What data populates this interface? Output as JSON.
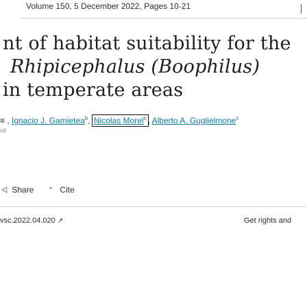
{
  "header": {
    "volume_line": "Volume 150, 5 December 2022, Pages 10-21"
  },
  "article": {
    "title_line1": "nt of habitat suitability for the",
    "title_line2": "Rhipicephalus (Boophilus)",
    "title_line3": "in temperate areas"
  },
  "authors": {
    "leading_fragment": "≡ ,",
    "items": [
      {
        "name": "Ignacio J. Gamietea",
        "sup": "b"
      },
      {
        "name": "Nicolas Morel",
        "sup": "c"
      },
      {
        "name": "Alberto A. Guglielmone",
        "sup": "c"
      }
    ],
    "second_line_fragment": "cd"
  },
  "actions": {
    "share_label": "Share",
    "cite_label": "Cite",
    "share_icon": "share-icon",
    "cite_icon": "quote-icon"
  },
  "footer": {
    "doi_text": "vsc.2022.04.020",
    "rights_label": "Get rights and"
  },
  "colors": {
    "link": "#0c7a99",
    "text": "#2e2e2e",
    "rule": "#d0d0d0"
  }
}
